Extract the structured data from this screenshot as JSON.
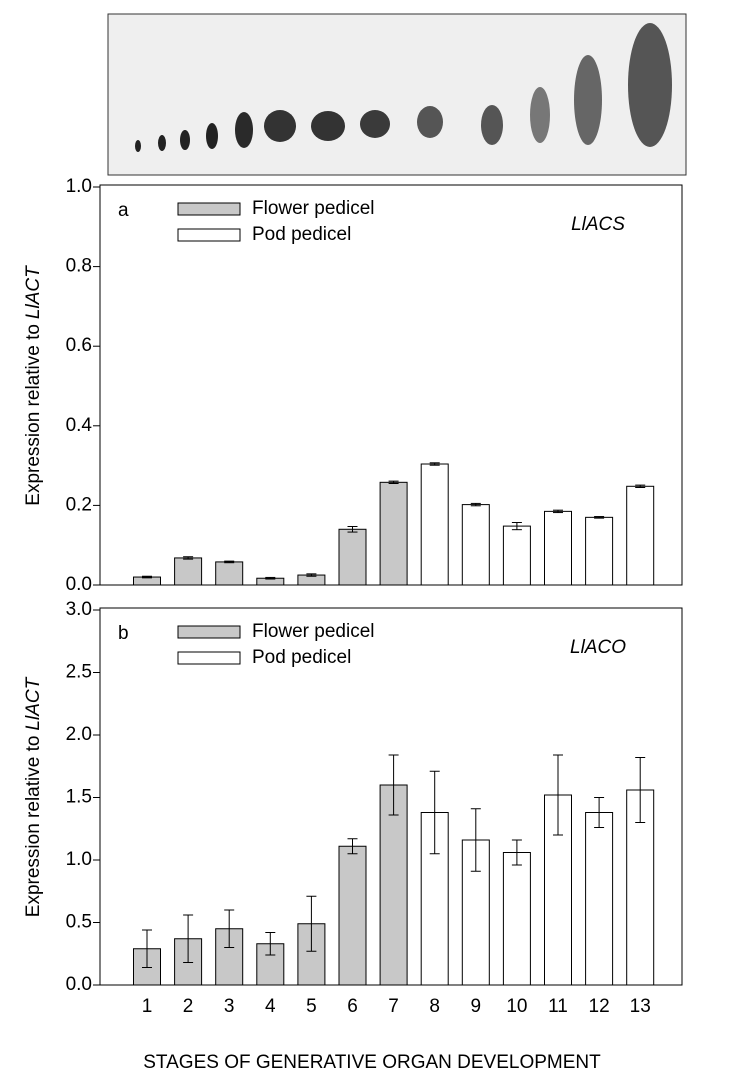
{
  "chart_data": [
    {
      "type": "bar",
      "panel_label": "a",
      "gene": "LlACS",
      "y_label": "Expression relative to",
      "y_label_italic": "LlACT",
      "ylim": [
        0,
        1
      ],
      "yticks": [
        {
          "value": 0,
          "label": "0.0"
        },
        0.2,
        0.4,
        0.6,
        0.8,
        {
          "value": 1,
          "label": "1.0"
        }
      ],
      "series": [
        {
          "name": "Flower pedicel",
          "color": "#c8c8c8",
          "values": [
            0.02,
            0.068,
            0.058,
            0.017,
            0.025,
            0.14,
            0.258,
            null,
            null,
            null,
            null,
            null,
            null
          ],
          "errors": [
            0.002,
            0.003,
            0.002,
            0.002,
            0.003,
            0.007,
            0.003,
            null,
            null,
            null,
            null,
            null,
            null
          ]
        },
        {
          "name": "Pod pedicel",
          "color": "#ffffff",
          "values": [
            null,
            null,
            null,
            null,
            null,
            null,
            null,
            0.304,
            0.202,
            0.148,
            0.185,
            0.17,
            0.248
          ],
          "errors": [
            null,
            null,
            null,
            null,
            null,
            null,
            null,
            0.003,
            0.003,
            0.009,
            0.003,
            0.002,
            0.003
          ]
        }
      ]
    },
    {
      "type": "bar",
      "panel_label": "b",
      "gene": "LlACO",
      "y_label": "Expression relative to",
      "y_label_italic": "LlACT",
      "x_label": "STAGES OF GENERATIVE ORGAN DEVELOPMENT",
      "categories": [
        "1",
        "2",
        "3",
        "4",
        "5",
        "6",
        "7",
        "8",
        "9",
        "10",
        "11",
        "12",
        "13"
      ],
      "ylim": [
        0,
        3
      ],
      "yticks": [
        {
          "value": 0,
          "label": "0.0"
        },
        0.5,
        {
          "value": 1,
          "label": "1.0"
        },
        1.5,
        {
          "value": 2,
          "label": "2.0"
        },
        2.5,
        {
          "value": 3,
          "label": "3.0"
        }
      ],
      "series": [
        {
          "name": "Flower pedicel",
          "color": "#c8c8c8",
          "values": [
            0.29,
            0.37,
            0.45,
            0.33,
            0.49,
            1.11,
            1.6,
            null,
            null,
            null,
            null,
            null,
            null
          ],
          "errors": [
            0.15,
            0.19,
            0.15,
            0.09,
            0.22,
            0.06,
            0.24,
            null,
            null,
            null,
            null,
            null,
            null
          ]
        },
        {
          "name": "Pod pedicel",
          "color": "#ffffff",
          "values": [
            null,
            null,
            null,
            null,
            null,
            null,
            null,
            1.38,
            1.16,
            1.06,
            1.52,
            1.38,
            1.56
          ],
          "errors": [
            null,
            null,
            null,
            null,
            null,
            null,
            null,
            0.33,
            0.25,
            0.1,
            0.32,
            0.12,
            0.26
          ]
        }
      ]
    }
  ]
}
